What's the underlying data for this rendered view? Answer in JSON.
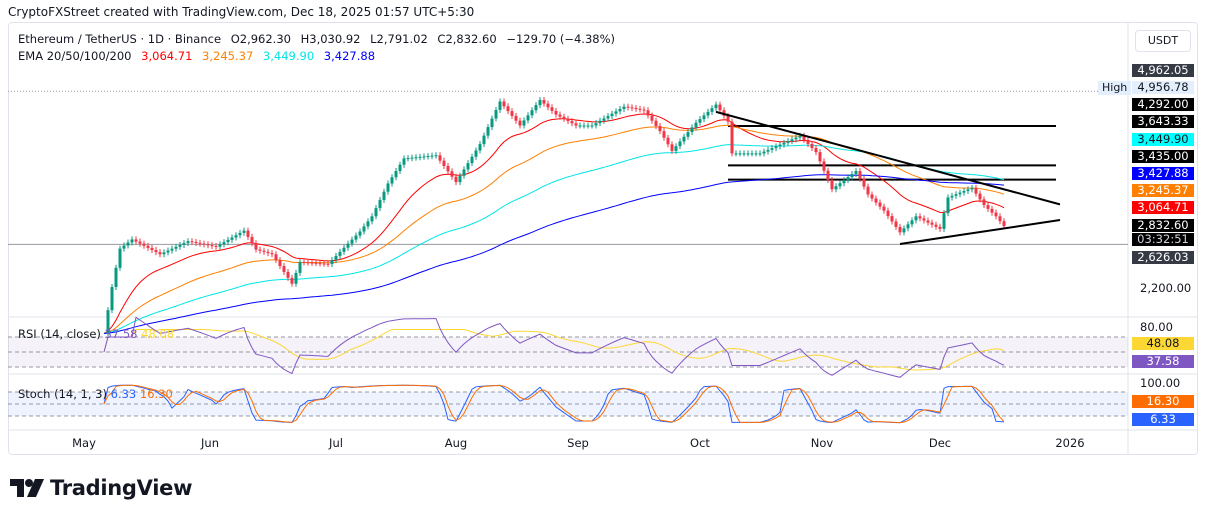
{
  "credit": "CryptoFXStreet created with TradingView.com, Dec 18, 2025 01:57 UTC+5:30",
  "legend": {
    "symbol": "Ethereum / TetherUS · 1D · Binance",
    "open": "O2,962.30",
    "high": "H3,030.92",
    "low": "L2,791.02",
    "close": "C2,832.60",
    "change": "−129.70 (−4.38%)",
    "ema_label": "EMA 20/50/100/200",
    "ema20": "3,064.71",
    "ema50": "3,245.37",
    "ema100": "3,449.90",
    "ema200": "3,427.88"
  },
  "currency": "USDT",
  "high_label": "High",
  "price_labels": [
    {
      "text": "4,962.05",
      "bg": "#363a45",
      "fg": "#ffffff"
    },
    {
      "text": "4,956.78",
      "bg": "#e3effd",
      "fg": "#131722"
    },
    {
      "text": "4,292.00",
      "bg": "#000000",
      "fg": "#ffffff"
    },
    {
      "text": "3,643.33",
      "bg": "#000000",
      "fg": "#ffffff"
    },
    {
      "text": "3,449.90",
      "bg": "#00ffff",
      "fg": "#131722"
    },
    {
      "text": "3,435.00",
      "bg": "#000000",
      "fg": "#ffffff"
    },
    {
      "text": "3,427.88",
      "bg": "#0000ff",
      "fg": "#ffffff"
    },
    {
      "text": "3,245.37",
      "bg": "#ff7f00",
      "fg": "#ffffff"
    },
    {
      "text": "3,064.71",
      "bg": "#ff0000",
      "fg": "#ffffff"
    },
    {
      "text": "2,832.60",
      "bg": "#000000",
      "fg": "#ffffff"
    },
    {
      "text": "03:32:51",
      "bg": "#000000",
      "fg": "#d1d4dc"
    },
    {
      "text": "2,626.03",
      "bg": "#363a45",
      "fg": "#ffffff"
    }
  ],
  "price_axis_tick": "2,200.00",
  "rsi": {
    "label": "RSI (14, close)",
    "value": "37.58",
    "ma": "48.08",
    "axis": "80.00",
    "color": "#7e57c2",
    "ma_color": "#fdd835"
  },
  "stoch": {
    "label": "Stoch (14, 1, 3)",
    "k": "6.33",
    "d": "16.30",
    "axis": "100.00",
    "k_color": "#2962ff",
    "d_color": "#ff6d00"
  },
  "months": [
    "May",
    "Jun",
    "Jul",
    "Aug",
    "Sep",
    "Oct",
    "Nov",
    "Dec",
    "2026"
  ],
  "brand": "TradingView",
  "chart_data": {
    "type": "candlestick",
    "scale": "log",
    "x_start": "2025-04-12",
    "x_end": "2026-01-20",
    "ylim": [
      1750,
      5300
    ],
    "dates": [
      "2025-05-06",
      "2025-05-08",
      "2025-05-10",
      "2025-05-13",
      "2025-05-20",
      "2025-05-27",
      "2025-06-03",
      "2025-06-10",
      "2025-06-13",
      "2025-06-17",
      "2025-06-22",
      "2025-06-24",
      "2025-07-01",
      "2025-07-09",
      "2025-07-12",
      "2025-07-16",
      "2025-07-20",
      "2025-07-28",
      "2025-08-02",
      "2025-08-08",
      "2025-08-13",
      "2025-08-18",
      "2025-08-23",
      "2025-08-27",
      "2025-09-01",
      "2025-09-05",
      "2025-09-13",
      "2025-09-18",
      "2025-09-22",
      "2025-09-25",
      "2025-10-01",
      "2025-10-06",
      "2025-10-09",
      "2025-10-10",
      "2025-10-17",
      "2025-10-27",
      "2025-10-31",
      "2025-11-04",
      "2025-11-10",
      "2025-11-13",
      "2025-11-17",
      "2025-11-21",
      "2025-11-25",
      "2025-12-01",
      "2025-12-03",
      "2025-12-09",
      "2025-12-12",
      "2025-12-15",
      "2025-12-17"
    ],
    "close": [
      1815,
      2200,
      2580,
      2680,
      2520,
      2660,
      2600,
      2780,
      2570,
      2520,
      2230,
      2440,
      2420,
      2770,
      2950,
      3380,
      3750,
      3800,
      3400,
      3980,
      4750,
      4300,
      4780,
      4500,
      4300,
      4300,
      4650,
      4580,
      4200,
      3870,
      4350,
      4690,
      4370,
      3830,
      3830,
      4120,
      3850,
      3300,
      3560,
      3230,
      3020,
      2760,
      2950,
      2800,
      3190,
      3320,
      3090,
      2950,
      2832.6
    ],
    "ema_periods": [
      20,
      50,
      100,
      200
    ],
    "ema_colors": [
      "#ff0000",
      "#ff7f00",
      "#00e5e5",
      "#0000ff"
    ],
    "horizontal_levels": [
      {
        "price": 4956.78,
        "style": "dotted",
        "label": "High"
      },
      {
        "price": 4292,
        "from": "2025-10-09",
        "to": "2025-12-30"
      },
      {
        "price": 3643.33,
        "from": "2025-10-09",
        "to": "2025-12-30"
      },
      {
        "price": 3435,
        "from": "2025-10-09",
        "to": "2025-12-30"
      },
      {
        "price": 2626.03,
        "style": "full"
      }
    ],
    "trendlines": [
      {
        "from": [
          "2025-10-06",
          4550
        ],
        "to": [
          "2025-12-31",
          3100
        ]
      },
      {
        "from": [
          "2025-11-21",
          2630
        ],
        "to": [
          "2025-12-31",
          2905
        ]
      }
    ],
    "up_color": "#089981",
    "down_color": "#f23645"
  }
}
